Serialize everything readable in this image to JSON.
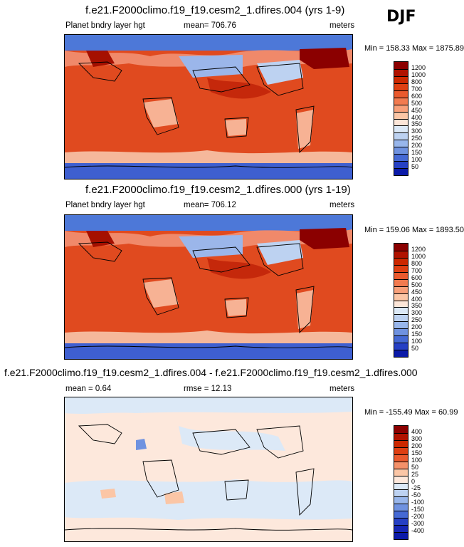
{
  "season": "DJF",
  "panels": [
    {
      "title": "f.e21.F2000climo.f19_f19.cesm2_1.dfires.004 (yrs 1-9)",
      "left_label": "Planet bndry layer hgt",
      "center_label": "mean= 706.76",
      "units": "meters",
      "minmax": "Min = 158.33 Max = 1875.89",
      "colorbar": {
        "labels": [
          "1200",
          "1000",
          "800",
          "700",
          "600",
          "500",
          "450",
          "400",
          "350",
          "300",
          "250",
          "200",
          "150",
          "100",
          "50"
        ],
        "colors": [
          "#8b0000",
          "#b01200",
          "#cc2800",
          "#de3f12",
          "#ea5a2e",
          "#f27b50",
          "#f8a07a",
          "#fbc6a6",
          "#fde6d8",
          "#dce9f7",
          "#bdd2f1",
          "#98b6eb",
          "#6f92e0",
          "#4569d4",
          "#2640c4",
          "#0b1aa8"
        ]
      }
    },
    {
      "title": "f.e21.F2000climo.f19_f19.cesm2_1.dfires.000 (yrs 1-19)",
      "left_label": "Planet bndry layer hgt",
      "center_label": "mean= 706.12",
      "units": "meters",
      "minmax": "Min = 159.06 Max = 1893.50",
      "colorbar": {
        "labels": [
          "1200",
          "1000",
          "800",
          "700",
          "600",
          "500",
          "450",
          "400",
          "350",
          "300",
          "250",
          "200",
          "150",
          "100",
          "50"
        ],
        "colors": [
          "#8b0000",
          "#b01200",
          "#cc2800",
          "#de3f12",
          "#ea5a2e",
          "#f27b50",
          "#f8a07a",
          "#fbc6a6",
          "#fde6d8",
          "#dce9f7",
          "#bdd2f1",
          "#98b6eb",
          "#6f92e0",
          "#4569d4",
          "#2640c4",
          "#0b1aa8"
        ]
      }
    },
    {
      "title": "f.e21.F2000climo.f19_f19.cesm2_1.dfires.004 - f.e21.F2000climo.f19_f19.cesm2_1.dfires.000",
      "left_label": "mean =   0.64",
      "center_label": "rmse =   12.13",
      "units": "meters",
      "minmax": "Min = -155.49 Max = 60.99",
      "colorbar": {
        "labels": [
          "400",
          "300",
          "200",
          "150",
          "100",
          "50",
          "25",
          "0",
          "-25",
          "-50",
          "-100",
          "-150",
          "-200",
          "-300",
          "-400"
        ],
        "colors": [
          "#8b0000",
          "#b01200",
          "#cc2800",
          "#de3f12",
          "#ea5a2e",
          "#f4916a",
          "#fbc6a6",
          "#fde8dc",
          "#dce9f7",
          "#bdd2f1",
          "#98b6eb",
          "#6f92e0",
          "#4569d4",
          "#2640c4",
          "#1626b4",
          "#0b1aa8"
        ]
      }
    }
  ],
  "chart_data": [
    {
      "type": "heatmap",
      "title": "f.e21.F2000climo.f19_f19.cesm2_1.dfires.004 (yrs 1-9)",
      "variable": "Planet bndry layer hgt",
      "units": "meters",
      "mean": 706.76,
      "min": 158.33,
      "max": 1875.89,
      "levels": [
        50,
        100,
        150,
        200,
        250,
        300,
        350,
        400,
        450,
        500,
        600,
        700,
        800,
        1000,
        1200
      ]
    },
    {
      "type": "heatmap",
      "title": "f.e21.F2000climo.f19_f19.cesm2_1.dfires.000 (yrs 1-19)",
      "variable": "Planet bndry layer hgt",
      "units": "meters",
      "mean": 706.12,
      "min": 159.06,
      "max": 1893.5,
      "levels": [
        50,
        100,
        150,
        200,
        250,
        300,
        350,
        400,
        450,
        500,
        600,
        700,
        800,
        1000,
        1200
      ]
    },
    {
      "type": "heatmap",
      "title": "f.e21.F2000climo.f19_f19.cesm2_1.dfires.004 - f.e21.F2000climo.f19_f19.cesm2_1.dfires.000",
      "units": "meters",
      "mean": 0.64,
      "rmse": 12.13,
      "min": -155.49,
      "max": 60.99,
      "levels": [
        -400,
        -300,
        -200,
        -150,
        -100,
        -50,
        -25,
        0,
        25,
        50,
        100,
        150,
        200,
        300,
        400
      ]
    }
  ]
}
